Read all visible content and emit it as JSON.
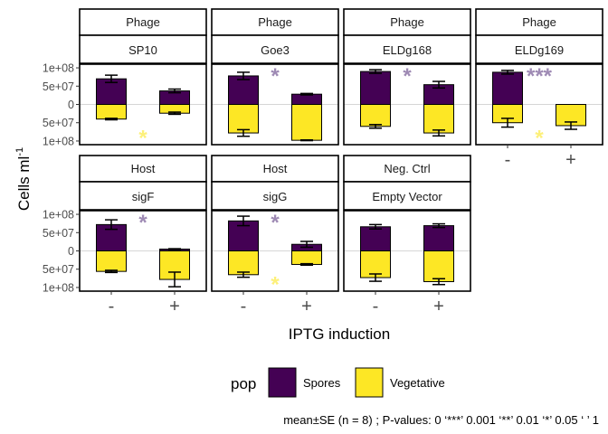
{
  "chart_data": {
    "type": "bar",
    "stacked": "diverging",
    "y_axis": {
      "label": "Cells ml",
      "label_superscript": "-1",
      "ticks": [
        {
          "value": 100000000,
          "label": "1e+08"
        },
        {
          "value": 50000000,
          "label": "5e+07"
        },
        {
          "value": 0,
          "label": "0"
        },
        {
          "value": -50000000,
          "label": "5e+07"
        },
        {
          "value": -100000000,
          "label": "1e+08"
        }
      ],
      "ylim": [
        -110000000,
        110000000
      ]
    },
    "x_axis": {
      "label": "IPTG induction",
      "categories": [
        "-",
        "+"
      ]
    },
    "legend": {
      "title": "pop",
      "position": "bottom",
      "entries": [
        {
          "name": "Spores",
          "color": "#440154"
        },
        {
          "name": "Vegetative",
          "color": "#FDE725"
        }
      ]
    },
    "caption": "mean±SE (n = 8) ; P-values: 0 ‘***’ 0.001 ‘**’ 0.01 ‘*’ 0.05 ‘ ’ 1",
    "grid": false,
    "panels": [
      {
        "strip1": "Phage",
        "strip2": "SP10",
        "bars": [
          {
            "x": "-",
            "spores": 70000000,
            "spores_se": 10000000,
            "veg": 40000000,
            "veg_se": 2000000
          },
          {
            "x": "+",
            "spores": 37000000,
            "spores_se": 5000000,
            "veg": 24000000,
            "veg_se": 3000000
          }
        ],
        "sig_spores": "",
        "sig_veg": "*"
      },
      {
        "strip1": "Phage",
        "strip2": "Goe3",
        "bars": [
          {
            "x": "-",
            "spores": 78000000,
            "spores_se": 10000000,
            "veg": 78000000,
            "veg_se": 9000000
          },
          {
            "x": "+",
            "spores": 28000000,
            "spores_se": 2000000,
            "veg": 98000000,
            "veg_se": 1000000
          }
        ],
        "sig_spores": "*",
        "sig_veg": ""
      },
      {
        "strip1": "Phage",
        "strip2": "ELDg168",
        "bars": [
          {
            "x": "-",
            "spores": 90000000,
            "spores_se": 5000000,
            "veg": 60000000,
            "veg_se": 5000000
          },
          {
            "x": "+",
            "spores": 54000000,
            "spores_se": 9000000,
            "veg": 78000000,
            "veg_se": 8000000
          }
        ],
        "sig_spores": "*",
        "sig_veg": ""
      },
      {
        "strip1": "Phage",
        "strip2": "ELDg169",
        "bars": [
          {
            "x": "-",
            "spores": 88000000,
            "spores_se": 5000000,
            "veg": 50000000,
            "veg_se": 12000000
          },
          {
            "x": "+",
            "spores": 0,
            "spores_se": 0,
            "veg": 58000000,
            "veg_se": 10000000
          }
        ],
        "sig_spores": "***",
        "sig_veg": "*"
      },
      {
        "strip1": "Host",
        "strip2": "sigF",
        "bars": [
          {
            "x": "-",
            "spores": 72000000,
            "spores_se": 13000000,
            "veg": 56000000,
            "veg_se": 3000000
          },
          {
            "x": "+",
            "spores": 5000000,
            "spores_se": 1000000,
            "veg": 78000000,
            "veg_se": 20000000
          }
        ],
        "sig_spores": "*",
        "sig_veg": ""
      },
      {
        "strip1": "Host",
        "strip2": "sigG",
        "bars": [
          {
            "x": "-",
            "spores": 82000000,
            "spores_se": 13000000,
            "veg": 65000000,
            "veg_se": 7000000
          },
          {
            "x": "+",
            "spores": 18000000,
            "spores_se": 8000000,
            "veg": 37000000,
            "veg_se": 2000000
          }
        ],
        "sig_spores": "*",
        "sig_veg": "*"
      },
      {
        "strip1": "Neg. Ctrl",
        "strip2": "Empty Vector",
        "bars": [
          {
            "x": "-",
            "spores": 66000000,
            "spores_se": 6000000,
            "veg": 73000000,
            "veg_se": 10000000
          },
          {
            "x": "+",
            "spores": 69000000,
            "spores_se": 5000000,
            "veg": 84000000,
            "veg_se": 8000000
          }
        ],
        "sig_spores": "",
        "sig_veg": ""
      }
    ]
  }
}
